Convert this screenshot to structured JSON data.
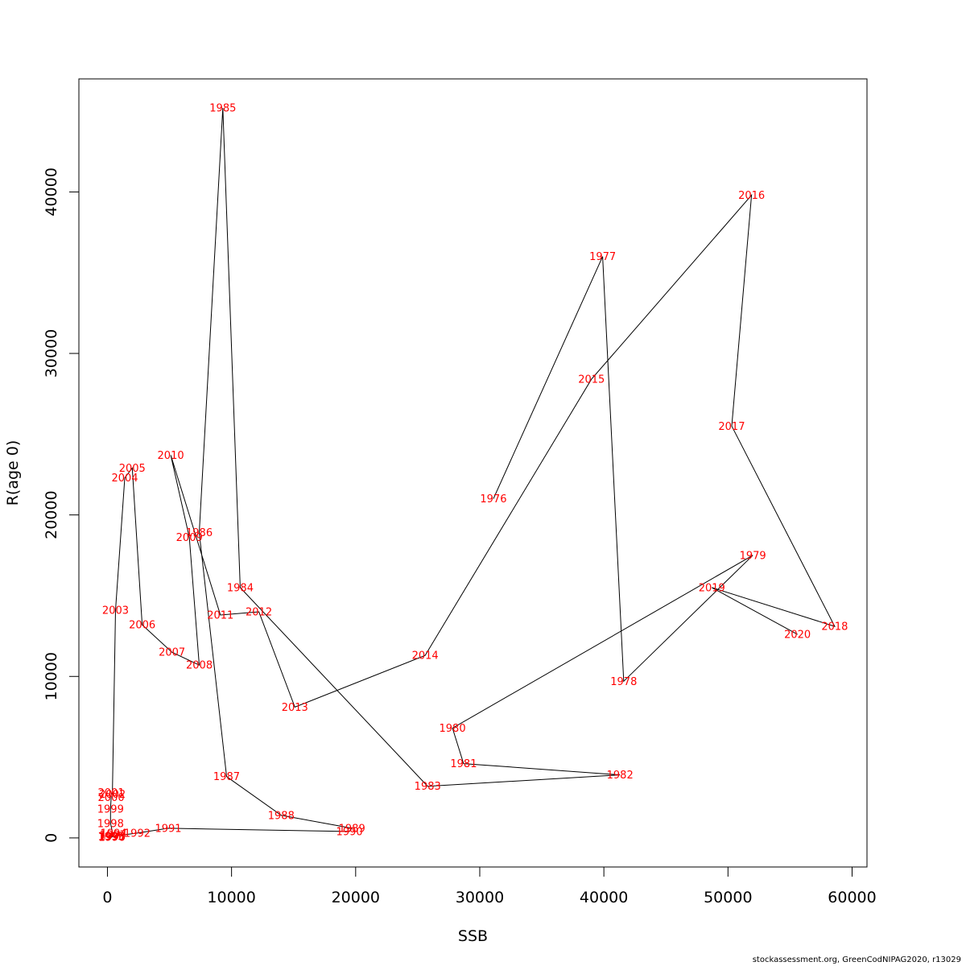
{
  "chart_data": {
    "type": "line",
    "title": "",
    "xlabel": "SSB",
    "ylabel": "R(age 0)",
    "xlim": [
      -2300,
      61200
    ],
    "ylim": [
      -1800,
      47000
    ],
    "xticks": [
      0,
      10000,
      20000,
      30000,
      40000,
      50000,
      60000
    ],
    "yticks": [
      0,
      10000,
      20000,
      30000,
      40000
    ],
    "grid": false,
    "line_color": "#000000",
    "label_color": "#ff0000",
    "points": [
      {
        "year": "1976",
        "x": 31100,
        "y": 21000
      },
      {
        "year": "1977",
        "x": 39900,
        "y": 36000
      },
      {
        "year": "1978",
        "x": 41600,
        "y": 9700
      },
      {
        "year": "1979",
        "x": 52000,
        "y": 17500
      },
      {
        "year": "1980",
        "x": 27800,
        "y": 6800
      },
      {
        "year": "1981",
        "x": 28700,
        "y": 4600
      },
      {
        "year": "1982",
        "x": 41300,
        "y": 3900
      },
      {
        "year": "1983",
        "x": 25800,
        "y": 3200
      },
      {
        "year": "1984",
        "x": 10700,
        "y": 15500
      },
      {
        "year": "1985",
        "x": 9300,
        "y": 45200
      },
      {
        "year": "1986",
        "x": 7400,
        "y": 18900
      },
      {
        "year": "1987",
        "x": 9600,
        "y": 3800
      },
      {
        "year": "1988",
        "x": 14000,
        "y": 1400
      },
      {
        "year": "1989",
        "x": 19700,
        "y": 600
      },
      {
        "year": "1990",
        "x": 19500,
        "y": 400
      },
      {
        "year": "1991",
        "x": 4900,
        "y": 600
      },
      {
        "year": "1992",
        "x": 2400,
        "y": 300
      },
      {
        "year": "1993",
        "x": 400,
        "y": 100
      },
      {
        "year": "1994",
        "x": 500,
        "y": 300
      },
      {
        "year": "1995",
        "x": 300,
        "y": 100
      },
      {
        "year": "1996",
        "x": 350,
        "y": 50
      },
      {
        "year": "1997",
        "x": 450,
        "y": 200
      },
      {
        "year": "1998",
        "x": 250,
        "y": 900
      },
      {
        "year": "1999",
        "x": 250,
        "y": 1800
      },
      {
        "year": "2000",
        "x": 300,
        "y": 2500
      },
      {
        "year": "2001",
        "x": 300,
        "y": 2800
      },
      {
        "year": "2002",
        "x": 400,
        "y": 2700
      },
      {
        "year": "2003",
        "x": 650,
        "y": 14100
      },
      {
        "year": "2004",
        "x": 1400,
        "y": 22300
      },
      {
        "year": "2005",
        "x": 2000,
        "y": 22900
      },
      {
        "year": "2006",
        "x": 2800,
        "y": 13200
      },
      {
        "year": "2007",
        "x": 5200,
        "y": 11500
      },
      {
        "year": "2008",
        "x": 7400,
        "y": 10700
      },
      {
        "year": "2009",
        "x": 6600,
        "y": 18600
      },
      {
        "year": "2010",
        "x": 5100,
        "y": 23700
      },
      {
        "year": "2011",
        "x": 9100,
        "y": 13800
      },
      {
        "year": "2012",
        "x": 12200,
        "y": 14000
      },
      {
        "year": "2013",
        "x": 15100,
        "y": 8100
      },
      {
        "year": "2014",
        "x": 25600,
        "y": 11300
      },
      {
        "year": "2015",
        "x": 39000,
        "y": 28400
      },
      {
        "year": "2016",
        "x": 51900,
        "y": 39800
      },
      {
        "year": "2017",
        "x": 50300,
        "y": 25500
      },
      {
        "year": "2018",
        "x": 58600,
        "y": 13100
      },
      {
        "year": "2019",
        "x": 48700,
        "y": 15500
      },
      {
        "year": "2020",
        "x": 55600,
        "y": 12600
      }
    ]
  },
  "credit": "stockassessment.org, GreenCodNIPAG2020, r13029"
}
